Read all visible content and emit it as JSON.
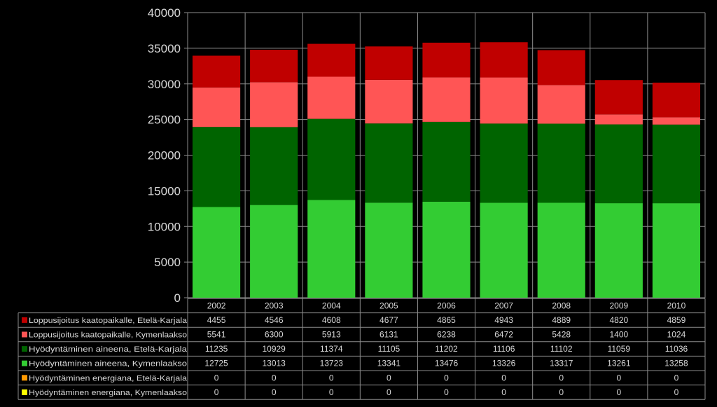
{
  "chart_data": {
    "type": "bar",
    "stacked": true,
    "categories": [
      "2002",
      "2003",
      "2004",
      "2005",
      "2006",
      "2007",
      "2008",
      "2009",
      "2010"
    ],
    "ylim": [
      0,
      40000
    ],
    "yticks": [
      0,
      5000,
      10000,
      15000,
      20000,
      25000,
      30000,
      35000,
      40000
    ],
    "grid": true,
    "legend": "data-table",
    "series": [
      {
        "name": "Loppusijoitus kaatopaikalle, Etelä-Karjala",
        "color": "#C00000",
        "values": [
          4455,
          4546,
          4608,
          4677,
          4865,
          4943,
          4889,
          4820,
          4859
        ]
      },
      {
        "name": "Loppusijoitus kaatopaikalle, Kymenlaakso",
        "color": "#FF5555",
        "values": [
          5541,
          6300,
          5913,
          6131,
          6238,
          6472,
          5428,
          1400,
          1024
        ]
      },
      {
        "name": "Hyödyntäminen aineena, Etelä-Karjala",
        "color": "#006400",
        "values": [
          11235,
          10929,
          11374,
          11105,
          11202,
          11106,
          11102,
          11059,
          11036
        ]
      },
      {
        "name": "Hyödyntäminen aineena, Kymenlaakso",
        "color": "#33CC33",
        "values": [
          12725,
          13013,
          13723,
          13341,
          13476,
          13326,
          13317,
          13261,
          13258
        ]
      },
      {
        "name": "Hyödyntäminen energiana, Etelä-Karjala",
        "color": "#FF9900",
        "values": [
          0,
          0,
          0,
          0,
          0,
          0,
          0,
          0,
          0
        ]
      },
      {
        "name": "Hyödyntäminen energiana, Kymenlaakso",
        "color": "#FFFF00",
        "values": [
          0,
          0,
          0,
          0,
          0,
          0,
          0,
          0,
          0
        ]
      }
    ]
  }
}
